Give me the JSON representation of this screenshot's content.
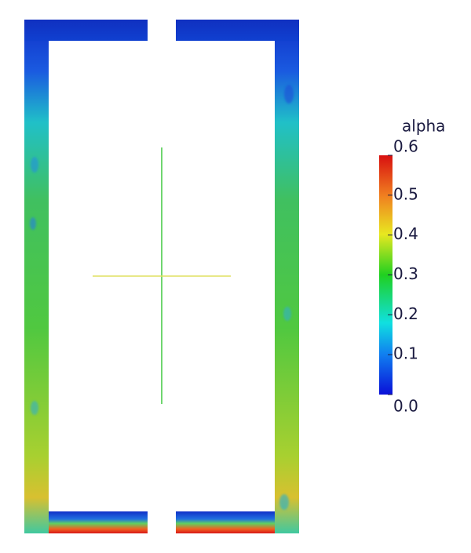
{
  "colorbar": {
    "title": "alpha",
    "range": [
      0,
      0.6
    ],
    "ticks": [
      {
        "value": 0,
        "label": "0.0"
      },
      0.1,
      0.2,
      0.3,
      0.4,
      0.5,
      0.6
    ]
  }
}
